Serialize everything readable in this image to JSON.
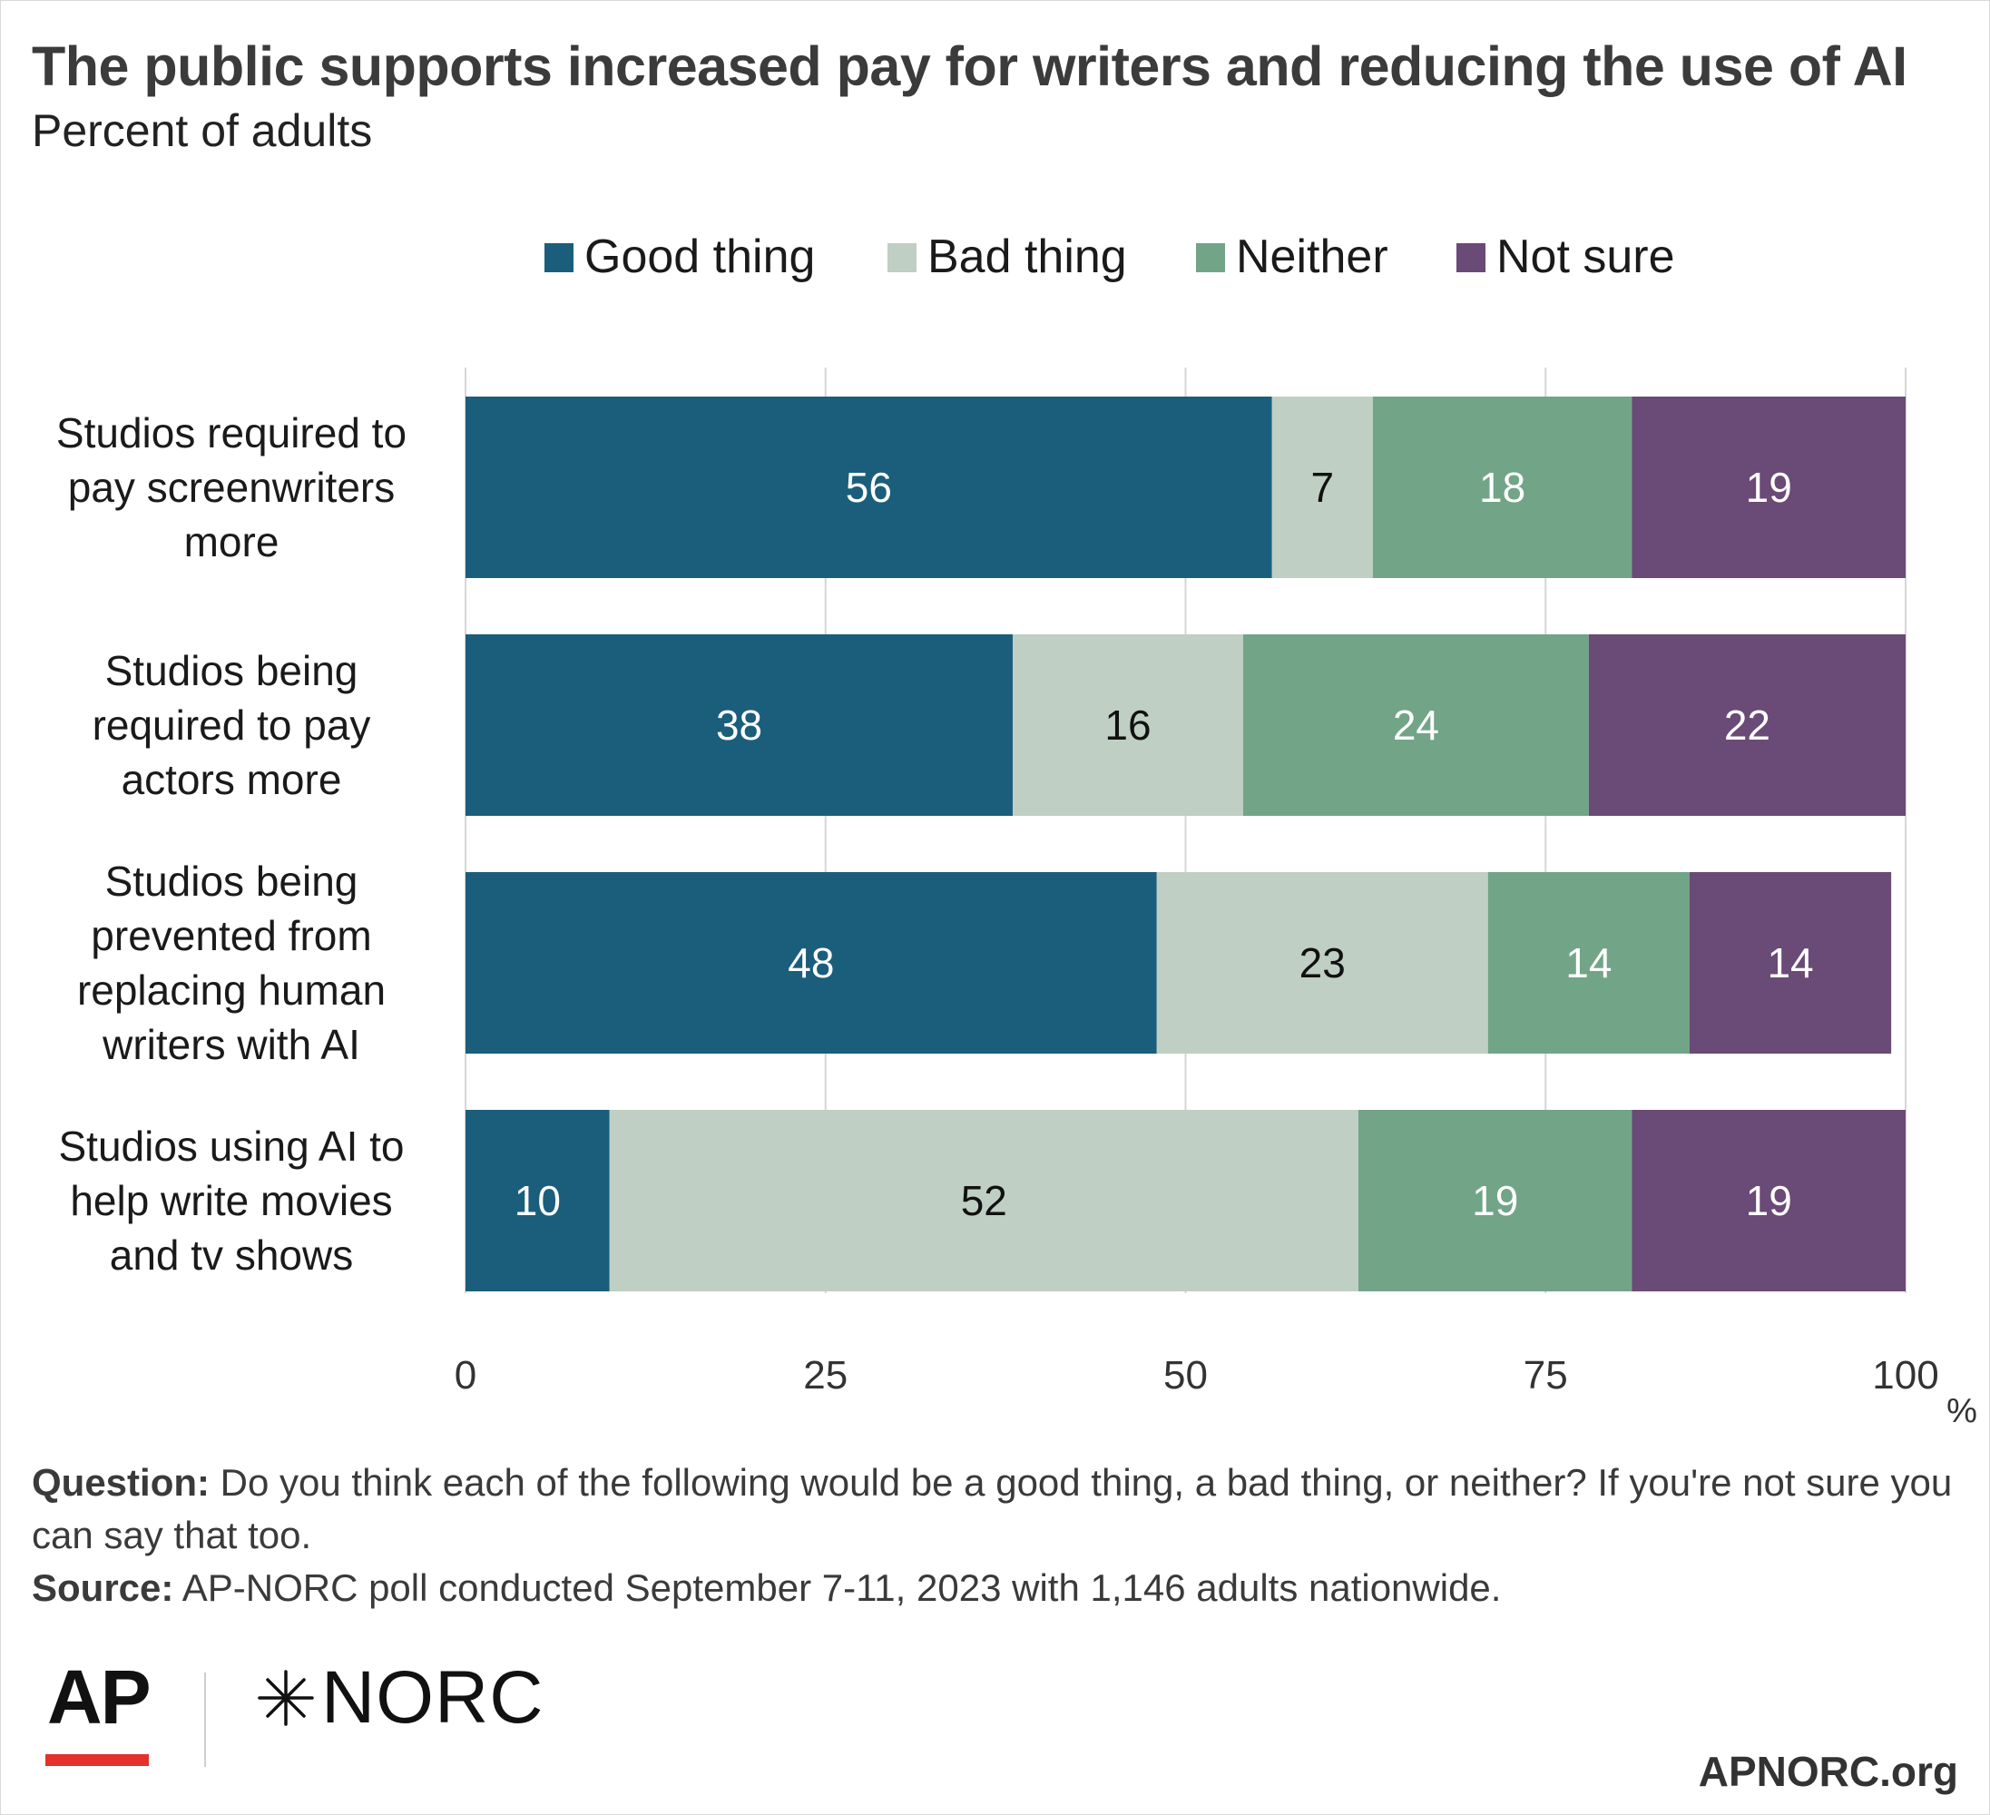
{
  "title": "The public supports increased pay for writers and reducing the use of AI",
  "subtitle": "Percent of adults",
  "chart_data": {
    "type": "bar",
    "orientation": "horizontal",
    "stacked": true,
    "categories": [
      "Studios required to pay screenwriters more",
      "Studios being required to pay actors more",
      "Studios being prevented from replacing human writers with AI",
      "Studios using AI to help write movies and tv shows"
    ],
    "category_lines": [
      [
        "Studios required to",
        "pay screenwriters",
        "more"
      ],
      [
        "Studios being",
        "required to pay",
        "actors more"
      ],
      [
        "Studios being",
        "prevented from",
        "replacing human",
        "writers with AI"
      ],
      [
        "Studios using AI to",
        "help write movies",
        "and tv shows"
      ]
    ],
    "series": [
      {
        "name": "Good thing",
        "values": [
          56,
          38,
          48,
          10
        ],
        "color": "#1a5e7c",
        "label_color": "#ffffff"
      },
      {
        "name": "Bad thing",
        "values": [
          7,
          16,
          23,
          52
        ],
        "color": "#bfcfc3",
        "label_color": "#111111"
      },
      {
        "name": "Neither",
        "values": [
          18,
          24,
          14,
          19
        ],
        "color": "#72a488",
        "label_color": "#ffffff"
      },
      {
        "name": "Not sure",
        "values": [
          19,
          22,
          14,
          19
        ],
        "color": "#6a4a76",
        "label_color": "#ffffff"
      }
    ],
    "xlim": [
      0,
      100
    ],
    "x_ticks": [
      0,
      25,
      50,
      75,
      100
    ],
    "x_unit": "%",
    "grid": true,
    "legend": "top"
  },
  "notes": {
    "question_label": "Question:",
    "question_text": " Do you think each of the following would be a good thing, a bad thing, or neither? If you're not sure you can say that too.",
    "source_label": "Source:",
    "source_text": " AP-NORC poll conducted September 7-11, 2023 with 1,146 adults nationwide."
  },
  "logos": {
    "ap": "AP",
    "norc": "NORC",
    "site": "APNORC.org"
  }
}
